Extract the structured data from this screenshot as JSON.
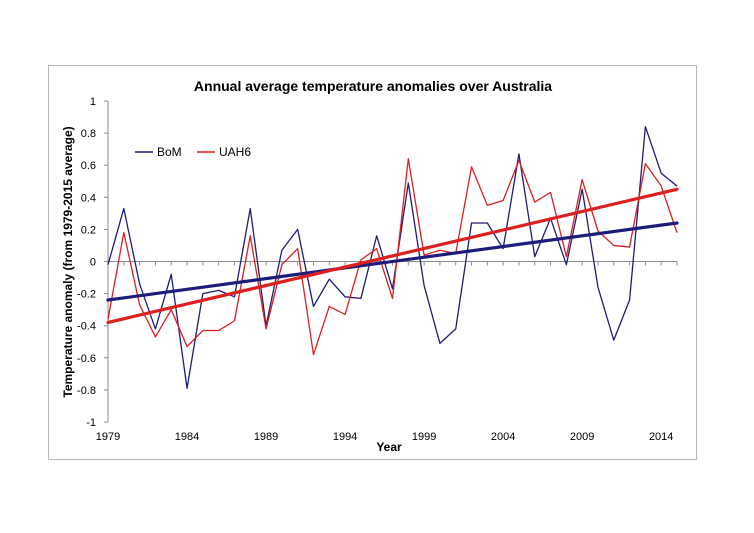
{
  "chart_data": {
    "type": "line",
    "title": "Annual average temperature anomalies over Australia",
    "xlabel": "Year",
    "ylabel": "Temperature anomaly (from 1979-2015 average)",
    "xlim": [
      1979,
      2015
    ],
    "ylim": [
      -1,
      1
    ],
    "x_ticks": [
      1979,
      1984,
      1989,
      1994,
      1999,
      2004,
      2009,
      2014
    ],
    "y_ticks": [
      -1,
      -0.8,
      -0.6,
      -0.4,
      -0.2,
      0,
      0.2,
      0.4,
      0.6,
      0.8,
      1
    ],
    "y_tick_labels": [
      "-1",
      "-0.8",
      "-0.6",
      "-0.4",
      "-0.2",
      "0",
      "0.2",
      "0.4",
      "0.6",
      "0.8",
      "1"
    ],
    "grid": false,
    "legend_position": "upper-left",
    "x": [
      1979,
      1980,
      1981,
      1982,
      1983,
      1984,
      1985,
      1986,
      1987,
      1988,
      1989,
      1990,
      1991,
      1992,
      1993,
      1994,
      1995,
      1996,
      1997,
      1998,
      1999,
      2000,
      2001,
      2002,
      2003,
      2004,
      2005,
      2006,
      2007,
      2008,
      2009,
      2010,
      2011,
      2012,
      2013,
      2014,
      2015
    ],
    "series": [
      {
        "name": "BoM",
        "color": "#1c1c7a",
        "values": [
          -0.02,
          0.33,
          -0.14,
          -0.42,
          -0.08,
          -0.79,
          -0.2,
          -0.18,
          -0.22,
          0.33,
          -0.4,
          0.07,
          0.2,
          -0.28,
          -0.11,
          -0.22,
          -0.23,
          0.16,
          -0.17,
          0.49,
          -0.15,
          -0.51,
          -0.42,
          0.24,
          0.24,
          0.08,
          0.67,
          0.03,
          0.27,
          -0.02,
          0.45,
          -0.16,
          -0.49,
          -0.24,
          0.84,
          0.55,
          0.47
        ],
        "trend": [
          -0.24,
          0.24
        ]
      },
      {
        "name": "UAH6",
        "color": "#dd1f1f",
        "values": [
          -0.36,
          0.18,
          -0.27,
          -0.47,
          -0.3,
          -0.53,
          -0.43,
          -0.43,
          -0.37,
          0.16,
          -0.42,
          -0.02,
          0.08,
          -0.58,
          -0.28,
          -0.33,
          0.01,
          0.08,
          -0.23,
          0.64,
          0.04,
          0.07,
          0.05,
          0.59,
          0.35,
          0.38,
          0.63,
          0.37,
          0.43,
          0.03,
          0.51,
          0.19,
          0.1,
          0.09,
          0.61,
          0.47,
          0.18
        ],
        "trend": [
          -0.38,
          0.45
        ]
      }
    ]
  }
}
